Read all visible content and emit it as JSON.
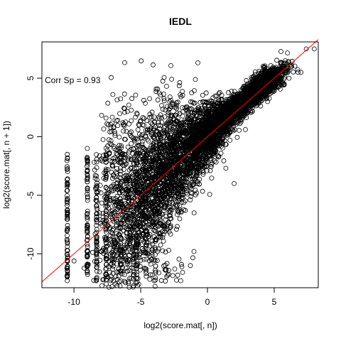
{
  "chart_data": {
    "type": "scatter",
    "title": "IEDL",
    "xlabel": "log2(score.mat[, n])",
    "ylabel": "log2(score.mat[, n + 1])",
    "xlim": [
      -12.4,
      8.3
    ],
    "ylim": [
      -12.9,
      8.1
    ],
    "x_ticks": [
      -10,
      -5,
      0,
      5
    ],
    "y_ticks": [
      -10,
      -5,
      0,
      5
    ],
    "x_tick_labels": [
      "-10",
      "-5",
      "0",
      "5"
    ],
    "y_tick_labels": [
      "-10",
      "-5",
      "0",
      "5"
    ],
    "annotation": "Corr Sp = 0.93",
    "reference_line": {
      "intercept": 0,
      "slope": 1,
      "color": "#ff0000"
    },
    "marker": "open-circle",
    "grid": false,
    "legend": "none",
    "spearman_correlation": 0.93,
    "points_sample": [
      {
        "x": 7.4,
        "y": 7.5
      },
      {
        "x": 8.0,
        "y": 7.5
      },
      {
        "x": 7.0,
        "y": 5.5
      },
      {
        "x": 6.3,
        "y": 6.0
      },
      {
        "x": 5.9,
        "y": 5.5
      },
      {
        "x": 5.0,
        "y": 4.8
      },
      {
        "x": 3.8,
        "y": 3.8
      },
      {
        "x": 2.5,
        "y": 2.3
      },
      {
        "x": 1.0,
        "y": 1.0
      },
      {
        "x": 0.0,
        "y": 0.0
      },
      {
        "x": -2.0,
        "y": -1.0
      },
      {
        "x": -3.0,
        "y": -3.5
      },
      {
        "x": -5.0,
        "y": -5.0
      },
      {
        "x": -7.0,
        "y": -1.0
      },
      {
        "x": -8.0,
        "y": -2.0
      },
      {
        "x": -10.5,
        "y": -1.5
      },
      {
        "x": -10.5,
        "y": -8.0
      },
      {
        "x": -10.5,
        "y": -12.3
      },
      {
        "x": -9.0,
        "y": -1.0
      },
      {
        "x": -9.0,
        "y": -11.5
      },
      {
        "x": -6.0,
        "y": -11.5
      },
      {
        "x": -4.0,
        "y": -12.3
      },
      {
        "x": -2.0,
        "y": -12.3
      },
      {
        "x": 1.5,
        "y": 0.5
      },
      {
        "x": 2.0,
        "y": -4.0
      },
      {
        "x": 3.0,
        "y": 4.0
      },
      {
        "x": 4.5,
        "y": 3.0
      },
      {
        "x": -1.0,
        "y": -6.5
      },
      {
        "x": -3.0,
        "y": -7.5
      },
      {
        "x": -4.5,
        "y": -10.0
      }
    ]
  }
}
